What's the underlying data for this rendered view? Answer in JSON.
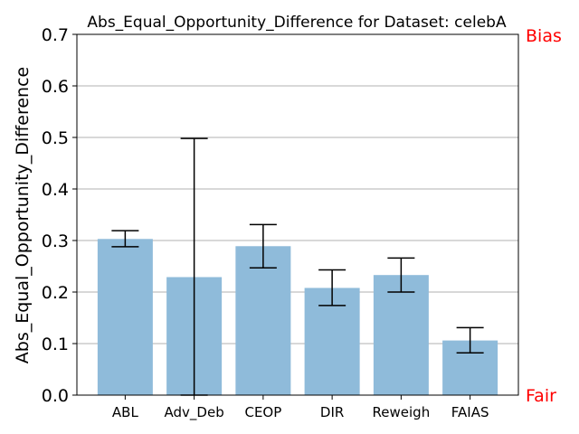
{
  "chart_data": {
    "type": "bar",
    "title": "Abs_Equal_Opportunity_Difference for Dataset: celebA",
    "xlabel": "",
    "ylabel": "Abs_Equal_Opportunity_Difference",
    "categories": [
      "ABL",
      "Adv_Deb",
      "CEOP",
      "DIR",
      "Reweigh",
      "FAIAS"
    ],
    "values": [
      0.303,
      0.229,
      0.289,
      0.208,
      0.233,
      0.106
    ],
    "error_low": [
      0.288,
      0.0,
      0.247,
      0.174,
      0.2,
      0.082
    ],
    "error_high": [
      0.319,
      0.498,
      0.331,
      0.243,
      0.266,
      0.131
    ],
    "ylim": [
      0,
      0.7
    ],
    "yticks": [
      "0.0",
      "0.1",
      "0.2",
      "0.3",
      "0.4",
      "0.5",
      "0.6",
      "0.7"
    ],
    "grid": "horizontal",
    "bar_color": "#8fbbda",
    "right_labels": {
      "top": "Bias",
      "bottom": "Fair",
      "color": "#ff0000"
    }
  }
}
